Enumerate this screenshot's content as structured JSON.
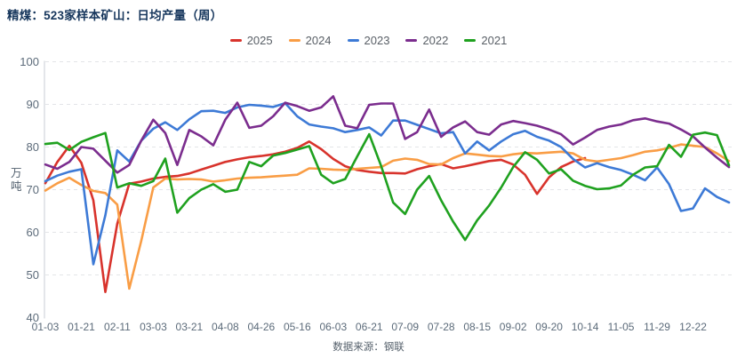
{
  "title": "精煤：523家样本矿山：日均产量（周）",
  "source": "数据来源：钢联",
  "y_axis": {
    "label": "万吨"
  },
  "chart_data": {
    "type": "line",
    "title": "精煤：523家样本矿山：日均产量（周）",
    "xlabel": "",
    "ylabel": "万吨",
    "ylim": [
      40,
      100
    ],
    "y_ticks": [
      40,
      50,
      60,
      70,
      80,
      90,
      100
    ],
    "x_tick_labels": [
      "01-03",
      "01-21",
      "02-11",
      "03-03",
      "03-21",
      "04-08",
      "04-26",
      "05-16",
      "06-03",
      "06-21",
      "07-09",
      "07-28",
      "08-15",
      "09-02",
      "09-20",
      "10-14",
      "11-05",
      "11-29",
      "12-22"
    ],
    "weeks_per_tick": 3,
    "grid": "horizontal-dashed",
    "legend_position": "top-center",
    "series": [
      {
        "name": "2025",
        "color": "#d8332c",
        "values": [
          71.5,
          76.5,
          80.3,
          76.3,
          67.5,
          46,
          62,
          71.4,
          71.9,
          72.6,
          73,
          73.2,
          73.8,
          74.7,
          75.6,
          76.5,
          77.1,
          77.6,
          77.9,
          78.3,
          78.9,
          79.8,
          81.3,
          79.5,
          77.2,
          75.5,
          74.6,
          74.2,
          73.9,
          73.9,
          73.8,
          74.8,
          75.5,
          76,
          75,
          75.5,
          76.1,
          76.7,
          77,
          75.9,
          73.5,
          69,
          72.9,
          75.3,
          76.6,
          77.4
        ]
      },
      {
        "name": "2024",
        "color": "#f99d45",
        "values": [
          69.8,
          71.5,
          72.8,
          71.1,
          69.7,
          69.2,
          66.5,
          46.8,
          58,
          70.5,
          72.6,
          72.4,
          72.5,
          72.4,
          71.9,
          72.2,
          72.6,
          72.8,
          72.9,
          73.1,
          73.3,
          73.5,
          75,
          74.9,
          74.7,
          74.6,
          74.9,
          75.1,
          75.3,
          76.8,
          77.3,
          77,
          76,
          75.9,
          77.4,
          78.5,
          78.2,
          77.9,
          77.8,
          78.3,
          78.6,
          78.5,
          78.7,
          78.9,
          78.5,
          77,
          76.6,
          77,
          77.4,
          78.1,
          78.9,
          79.2,
          79.8,
          80.6,
          80.3,
          80,
          78.5,
          76.7
        ]
      },
      {
        "name": "2023",
        "color": "#3d7ad6",
        "values": [
          72,
          73.3,
          74.2,
          74.8,
          52.5,
          64,
          79.2,
          76.6,
          81.5,
          84.3,
          85.8,
          84,
          86.5,
          88.4,
          88.5,
          88,
          89.3,
          89.9,
          89.7,
          89.4,
          90.3,
          87.2,
          85.3,
          84.8,
          84.4,
          83.5,
          84,
          84.6,
          82.7,
          86.2,
          86.2,
          85.2,
          84.2,
          83.2,
          83.5,
          78.5,
          81.3,
          79.2,
          81.3,
          83,
          83.8,
          82.4,
          81.5,
          80,
          77.2,
          75.2,
          76.2,
          75.3,
          74.6,
          73.5,
          72.2,
          75.2,
          71.3,
          65,
          65.6,
          70.3,
          68.3,
          67
        ]
      },
      {
        "name": "2022",
        "color": "#7b2d8e",
        "values": [
          75.9,
          74.9,
          76.5,
          80,
          79.6,
          76.8,
          74,
          75.8,
          81.5,
          86.4,
          83.3,
          75.8,
          84,
          82.5,
          80.4,
          86.4,
          90.4,
          84.5,
          85,
          87.2,
          90.4,
          89.6,
          88.5,
          89.3,
          91.9,
          85,
          84.4,
          89.9,
          90.2,
          90.2,
          81.9,
          83.5,
          88.8,
          82.4,
          84.6,
          86,
          83.5,
          82.9,
          85.3,
          86.1,
          85.6,
          85,
          84.1,
          83,
          80.6,
          82.2,
          84,
          84.8,
          85.3,
          86.3,
          86.7,
          86,
          85.5,
          84.1,
          82.5,
          79.9,
          77.5,
          75.3
        ]
      },
      {
        "name": "2021",
        "color": "#1fa11f",
        "values": [
          80.7,
          81,
          79.3,
          81.2,
          82.3,
          83.3,
          70.5,
          71.5,
          70.9,
          72,
          77.3,
          64.6,
          68,
          70,
          71.3,
          69.5,
          70,
          76.5,
          75.5,
          78,
          78.6,
          79.4,
          80.2,
          73.5,
          71.5,
          72.5,
          77.8,
          83,
          75.5,
          67,
          64.3,
          70,
          73.2,
          67.5,
          62.5,
          58.2,
          62.8,
          66.3,
          70.5,
          75.3,
          78.8,
          77,
          73.8,
          74.8,
          72.1,
          70.9,
          70.1,
          70.3,
          71,
          73.5,
          75.2,
          75.5,
          80.5,
          77.7,
          82.9,
          83.4,
          82.8,
          75.7
        ]
      }
    ]
  }
}
